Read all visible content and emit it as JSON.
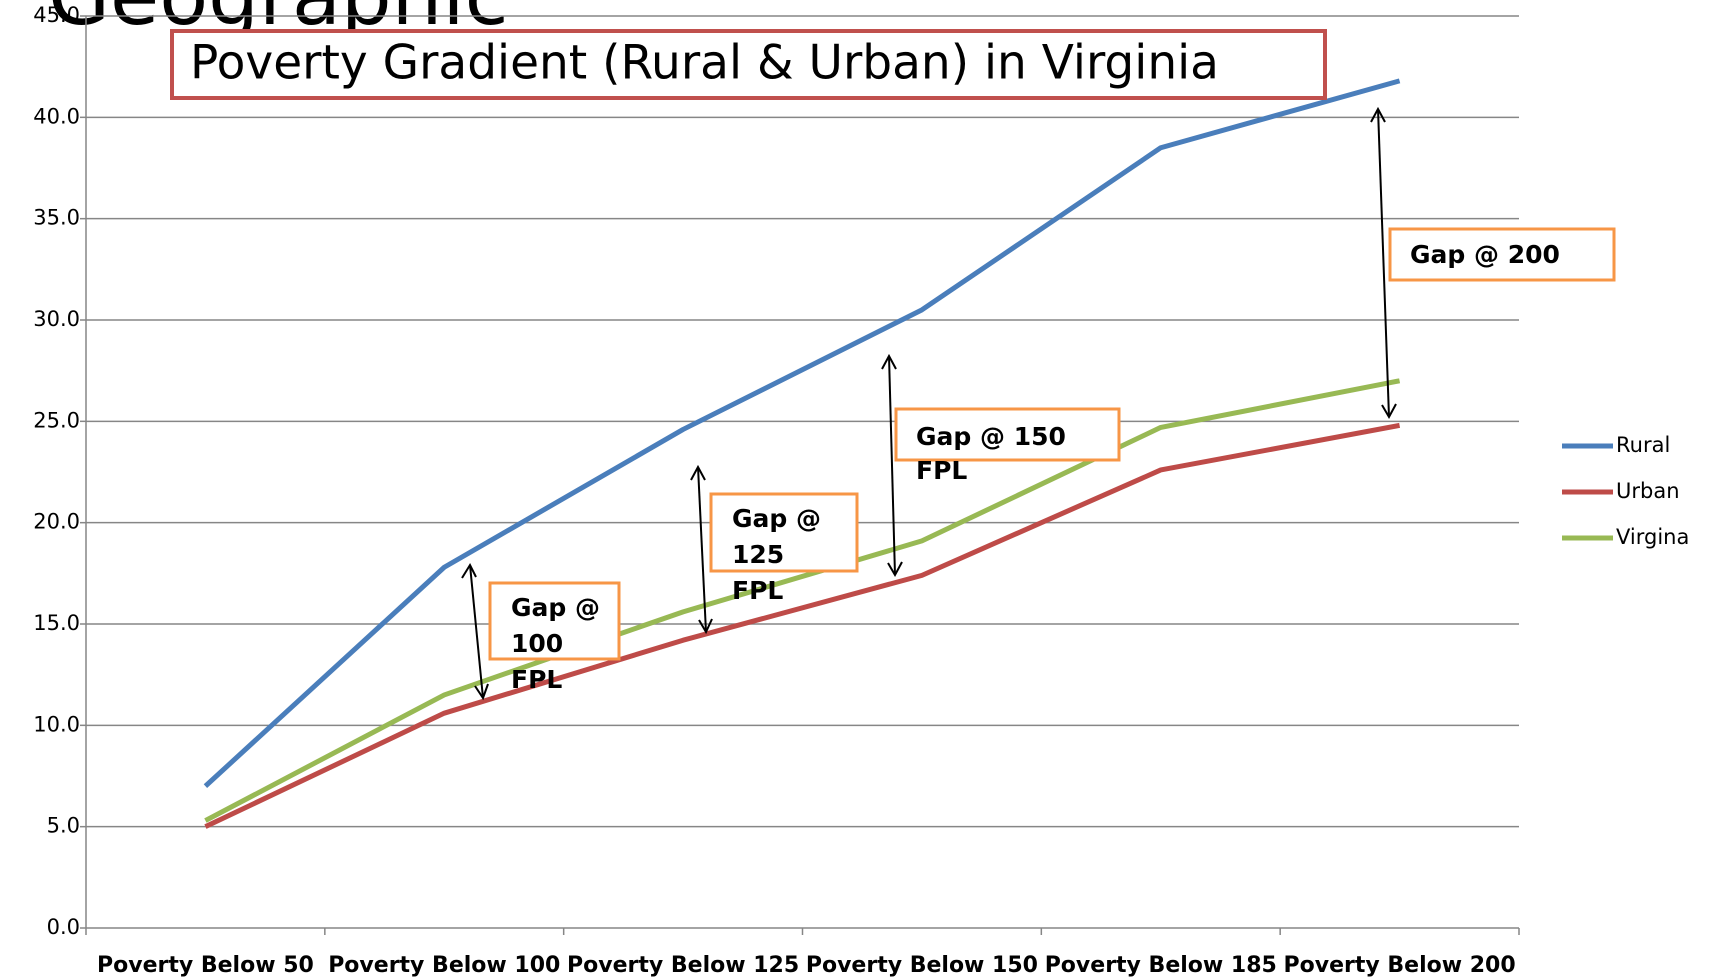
{
  "heading": "Geographic",
  "chart_data": {
    "type": "line",
    "title": "Poverty Gradient (Rural & Urban) in Virginia",
    "categories": [
      "Poverty Below 50",
      "Poverty Below 100",
      "Poverty Below 125",
      "Poverty Below 150",
      "Poverty Below 185",
      "Poverty Below 200"
    ],
    "series": [
      {
        "name": "Rural",
        "color": "#4a7ebb",
        "values": [
          7.0,
          17.8,
          24.6,
          30.5,
          38.5,
          41.8
        ]
      },
      {
        "name": "Urban",
        "color": "#be4b48",
        "values": [
          5.0,
          10.6,
          14.2,
          17.4,
          22.6,
          24.8
        ]
      },
      {
        "name": "Virgina",
        "color": "#98b954",
        "values": [
          5.3,
          11.5,
          15.6,
          19.1,
          24.7,
          27.0
        ]
      }
    ],
    "ylim": [
      0,
      45
    ],
    "yticks": [
      {
        "value": 0,
        "label": "0.0"
      },
      {
        "value": 5,
        "label": "5.0"
      },
      {
        "value": 10,
        "label": "10.0"
      },
      {
        "value": 15,
        "label": "15.0"
      },
      {
        "value": 20,
        "label": "20.0"
      },
      {
        "value": 25,
        "label": "25.0"
      },
      {
        "value": 30,
        "label": "30.0"
      },
      {
        "value": 35,
        "label": "35.0"
      },
      {
        "value": 40,
        "label": "40.0"
      },
      {
        "value": 45,
        "label": "45.0"
      }
    ],
    "grid": true,
    "legend": "right",
    "annotations": [
      [
        "Gap @",
        "100",
        "FPL"
      ],
      [
        "Gap @",
        "125",
        "FPL"
      ],
      [
        "Gap @ 150",
        "FPL"
      ],
      [
        "Gap @ 200"
      ]
    ]
  }
}
